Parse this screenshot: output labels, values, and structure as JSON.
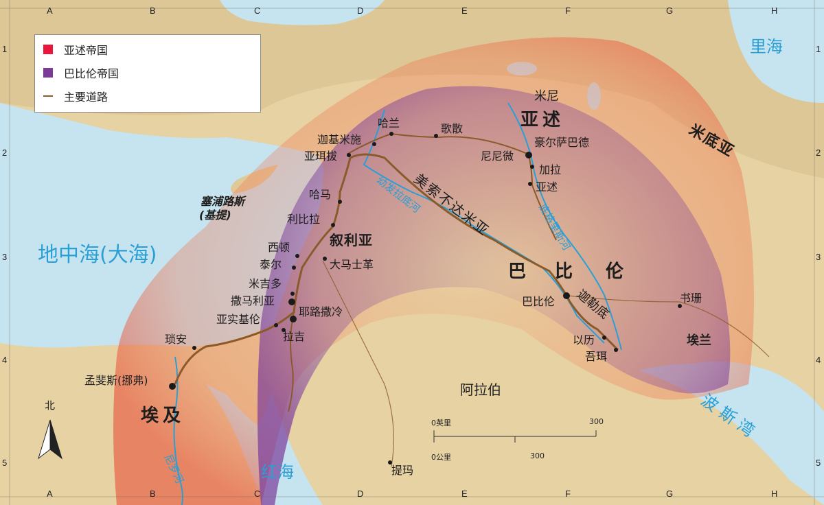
{
  "legend": {
    "items": [
      {
        "label": "亚述帝国",
        "color": "#e8163a"
      },
      {
        "label": "巴比伦帝国",
        "color": "#7a3a9a"
      },
      {
        "label": "主要道路",
        "color": "#8b5a2b"
      }
    ]
  },
  "grid": {
    "columns": [
      "A",
      "B",
      "C",
      "D",
      "E",
      "F",
      "G",
      "H"
    ],
    "rows": [
      "1",
      "2",
      "3",
      "4",
      "5"
    ]
  },
  "seas": {
    "mediterranean": "地中海(大海)",
    "caspian": "里海",
    "red_sea": "红海",
    "persian_gulf": "波斯湾"
  },
  "regions": {
    "assyria": "亚述",
    "mitanni": "米尼",
    "media": "米底亚",
    "syria": "叙利亚",
    "babylon_west": "巴",
    "babylon_mid": "比",
    "babylon_east": "伦",
    "egypt": "埃及",
    "arabia": "阿拉伯",
    "mesopotamia": "美索不达米亚",
    "chaldea": "迦勒底",
    "elam": "埃兰",
    "cyprus": "塞浦路斯",
    "cyprus_alt": "(基提)"
  },
  "rivers": {
    "euphrates": "幼发拉底河",
    "tigris": "底格里斯河",
    "nile": "尼罗河"
  },
  "cities": {
    "haran": "哈兰",
    "carchemish": "迦基米施",
    "gozan": "歌散",
    "arpad": "亚珥拔",
    "nineveh": "尼尼微",
    "khorsabad": "豪尔萨巴德",
    "calah": "加拉",
    "ashur": "亚述",
    "hamath": "哈马",
    "riblah": "利比拉",
    "sidon": "西顿",
    "tyre": "泰尔",
    "damascus": "大马士革",
    "megiddo": "米吉多",
    "samaria": "撒马利亚",
    "ashkelon": "亚实基伦",
    "jerusalem": "耶路撒冷",
    "lachish": "拉吉",
    "babylon": "巴比伦",
    "susa": "书珊",
    "ur": "以历",
    "erech": "吾珥",
    "zoan": "琐安",
    "memphis": "孟斐斯(挪弗)",
    "tema": "提玛"
  },
  "compass": {
    "north": "北"
  },
  "scale": {
    "miles_zero": "0英里",
    "miles_max": "300",
    "km_zero": "0公里",
    "km_mid": "300"
  }
}
